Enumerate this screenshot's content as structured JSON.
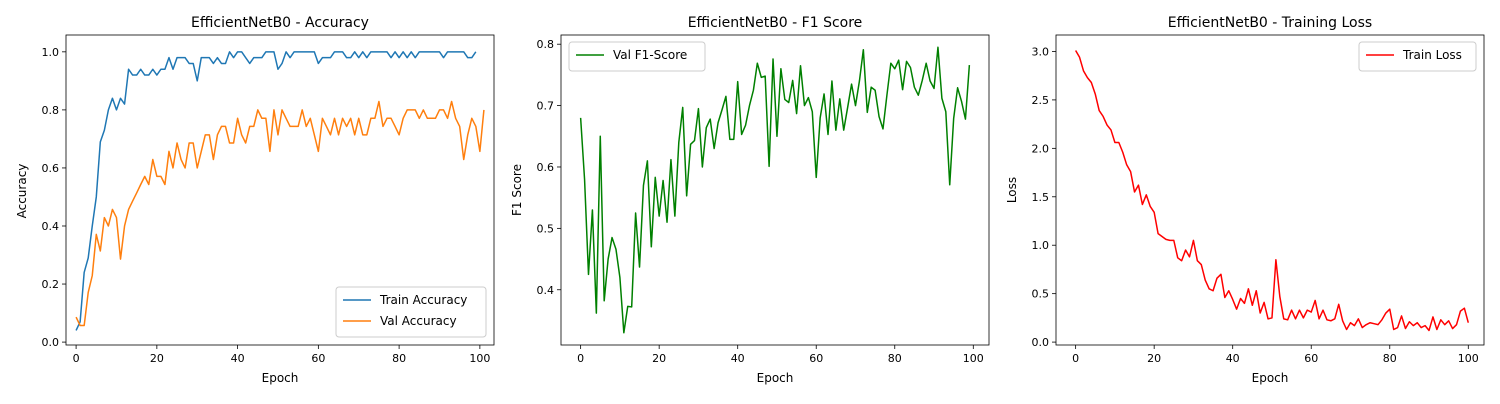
{
  "chart_data": [
    {
      "type": "line",
      "title": "EfficientNetB0 - Accuracy",
      "xlabel": "Epoch",
      "ylabel": "Accuracy",
      "xlim": [
        -2.5,
        103.5
      ],
      "ylim": [
        -0.01,
        1.058
      ],
      "xticks": [
        0,
        20,
        40,
        60,
        80,
        100
      ],
      "yticks": [
        0.0,
        0.2,
        0.4,
        0.6,
        0.8,
        1.0
      ],
      "ytick_labels": [
        "0.0",
        "0.2",
        "0.4",
        "0.6",
        "0.8",
        "1.0"
      ],
      "legend": "lower-right",
      "grid": false,
      "series": [
        {
          "name": "Train Accuracy",
          "color": "#1f77b4",
          "values": [
            0.04,
            0.07,
            0.24,
            0.29,
            0.4,
            0.5,
            0.69,
            0.73,
            0.8,
            0.84,
            0.8,
            0.84,
            0.82,
            0.94,
            0.92,
            0.92,
            0.94,
            0.92,
            0.92,
            0.94,
            0.92,
            0.94,
            0.94,
            0.98,
            0.94,
            0.98,
            0.98,
            0.98,
            0.96,
            0.96,
            0.9,
            0.98,
            0.98,
            0.98,
            0.96,
            0.98,
            0.96,
            0.96,
            1.0,
            0.98,
            1.0,
            1.0,
            0.98,
            0.96,
            0.98,
            0.98,
            0.98,
            1.0,
            1.0,
            1.0,
            0.94,
            0.96,
            1.0,
            0.98,
            1.0,
            1.0,
            1.0,
            1.0,
            1.0,
            1.0,
            0.96,
            0.98,
            0.98,
            0.98,
            1.0,
            1.0,
            1.0,
            0.98,
            0.98,
            1.0,
            0.98,
            1.0,
            0.98,
            1.0,
            1.0,
            1.0,
            1.0,
            1.0,
            0.98,
            1.0,
            0.98,
            1.0,
            0.98,
            1.0,
            0.98,
            1.0,
            1.0,
            1.0,
            1.0,
            1.0,
            1.0,
            0.98,
            1.0,
            1.0,
            1.0,
            1.0,
            1.0,
            0.98,
            0.98,
            1.0
          ]
        },
        {
          "name": "Val Accuracy",
          "color": "#ff7f0e",
          "values": [
            0.086,
            0.057,
            0.057,
            0.171,
            0.229,
            0.371,
            0.314,
            0.429,
            0.4,
            0.457,
            0.429,
            0.286,
            0.4,
            0.457,
            0.486,
            0.514,
            0.543,
            0.571,
            0.543,
            0.629,
            0.571,
            0.571,
            0.543,
            0.657,
            0.6,
            0.686,
            0.629,
            0.6,
            0.686,
            0.686,
            0.6,
            0.657,
            0.714,
            0.714,
            0.629,
            0.714,
            0.743,
            0.743,
            0.686,
            0.686,
            0.771,
            0.714,
            0.686,
            0.743,
            0.743,
            0.8,
            0.771,
            0.771,
            0.657,
            0.8,
            0.714,
            0.8,
            0.771,
            0.743,
            0.743,
            0.743,
            0.8,
            0.743,
            0.771,
            0.714,
            0.657,
            0.771,
            0.743,
            0.714,
            0.771,
            0.714,
            0.771,
            0.743,
            0.771,
            0.714,
            0.771,
            0.714,
            0.714,
            0.771,
            0.771,
            0.829,
            0.743,
            0.771,
            0.771,
            0.743,
            0.714,
            0.771,
            0.8,
            0.8,
            0.8,
            0.771,
            0.8,
            0.771,
            0.771,
            0.771,
            0.8,
            0.8,
            0.771,
            0.829,
            0.771,
            0.743,
            0.629,
            0.714,
            0.771,
            0.743,
            0.657,
            0.8
          ]
        }
      ]
    },
    {
      "type": "line",
      "title": "EfficientNetB0 - F1 Score",
      "xlabel": "Epoch",
      "ylabel": "F1 Score",
      "xlim": [
        -5,
        104
      ],
      "ylim": [
        0.31,
        0.815
      ],
      "xticks": [
        0,
        20,
        40,
        60,
        80,
        100
      ],
      "yticks": [
        0.4,
        0.5,
        0.6,
        0.7,
        0.8
      ],
      "ytick_labels": [
        "0.4",
        "0.5",
        "0.6",
        "0.7",
        "0.8"
      ],
      "legend": "top-left",
      "grid": false,
      "series": [
        {
          "name": "Val F1-Score",
          "color": "#008000",
          "values": [
            0.68,
            0.58,
            0.425,
            0.53,
            0.362,
            0.65,
            0.382,
            0.45,
            0.485,
            0.466,
            0.42,
            0.33,
            0.373,
            0.372,
            0.525,
            0.437,
            0.57,
            0.61,
            0.47,
            0.583,
            0.52,
            0.578,
            0.51,
            0.612,
            0.52,
            0.64,
            0.697,
            0.553,
            0.637,
            0.643,
            0.695,
            0.6,
            0.664,
            0.678,
            0.63,
            0.672,
            0.693,
            0.715,
            0.645,
            0.645,
            0.739,
            0.653,
            0.668,
            0.7,
            0.725,
            0.769,
            0.746,
            0.748,
            0.601,
            0.776,
            0.65,
            0.76,
            0.71,
            0.705,
            0.741,
            0.687,
            0.765,
            0.7,
            0.713,
            0.69,
            0.583,
            0.68,
            0.719,
            0.653,
            0.74,
            0.66,
            0.711,
            0.66,
            0.697,
            0.735,
            0.7,
            0.74,
            0.791,
            0.689,
            0.73,
            0.725,
            0.682,
            0.662,
            0.717,
            0.769,
            0.76,
            0.774,
            0.726,
            0.772,
            0.762,
            0.73,
            0.717,
            0.741,
            0.769,
            0.74,
            0.728,
            0.795,
            0.712,
            0.69,
            0.571,
            0.679,
            0.729,
            0.707,
            0.678,
            0.766
          ]
        }
      ]
    },
    {
      "type": "line",
      "title": "EfficientNetB0 - Training Loss",
      "xlabel": "Epoch",
      "ylabel": "Loss",
      "xlim": [
        -5,
        104
      ],
      "ylim": [
        -0.03,
        3.17
      ],
      "xticks": [
        0,
        20,
        40,
        60,
        80,
        100
      ],
      "yticks": [
        0.0,
        0.5,
        1.0,
        1.5,
        2.0,
        2.5,
        3.0
      ],
      "ytick_labels": [
        "0.0",
        "0.5",
        "1.0",
        "1.5",
        "2.0",
        "2.5",
        "3.0"
      ],
      "legend": "top-right",
      "grid": false,
      "series": [
        {
          "name": "Train Loss",
          "color": "#ff0000",
          "values": [
            3.01,
            2.94,
            2.8,
            2.73,
            2.68,
            2.56,
            2.39,
            2.33,
            2.24,
            2.19,
            2.06,
            2.06,
            1.96,
            1.83,
            1.76,
            1.55,
            1.62,
            1.42,
            1.52,
            1.4,
            1.34,
            1.12,
            1.09,
            1.06,
            1.05,
            1.05,
            0.87,
            0.84,
            0.95,
            0.88,
            1.05,
            0.84,
            0.8,
            0.64,
            0.55,
            0.53,
            0.66,
            0.7,
            0.46,
            0.53,
            0.44,
            0.34,
            0.45,
            0.4,
            0.55,
            0.38,
            0.53,
            0.3,
            0.41,
            0.24,
            0.25,
            0.85,
            0.47,
            0.24,
            0.23,
            0.33,
            0.24,
            0.33,
            0.25,
            0.33,
            0.31,
            0.43,
            0.24,
            0.33,
            0.23,
            0.22,
            0.24,
            0.39,
            0.22,
            0.13,
            0.2,
            0.17,
            0.24,
            0.15,
            0.18,
            0.2,
            0.19,
            0.18,
            0.23,
            0.3,
            0.34,
            0.13,
            0.15,
            0.27,
            0.14,
            0.21,
            0.17,
            0.2,
            0.15,
            0.17,
            0.12,
            0.26,
            0.13,
            0.23,
            0.18,
            0.22,
            0.14,
            0.18,
            0.32,
            0.35,
            0.2
          ]
        }
      ]
    }
  ]
}
